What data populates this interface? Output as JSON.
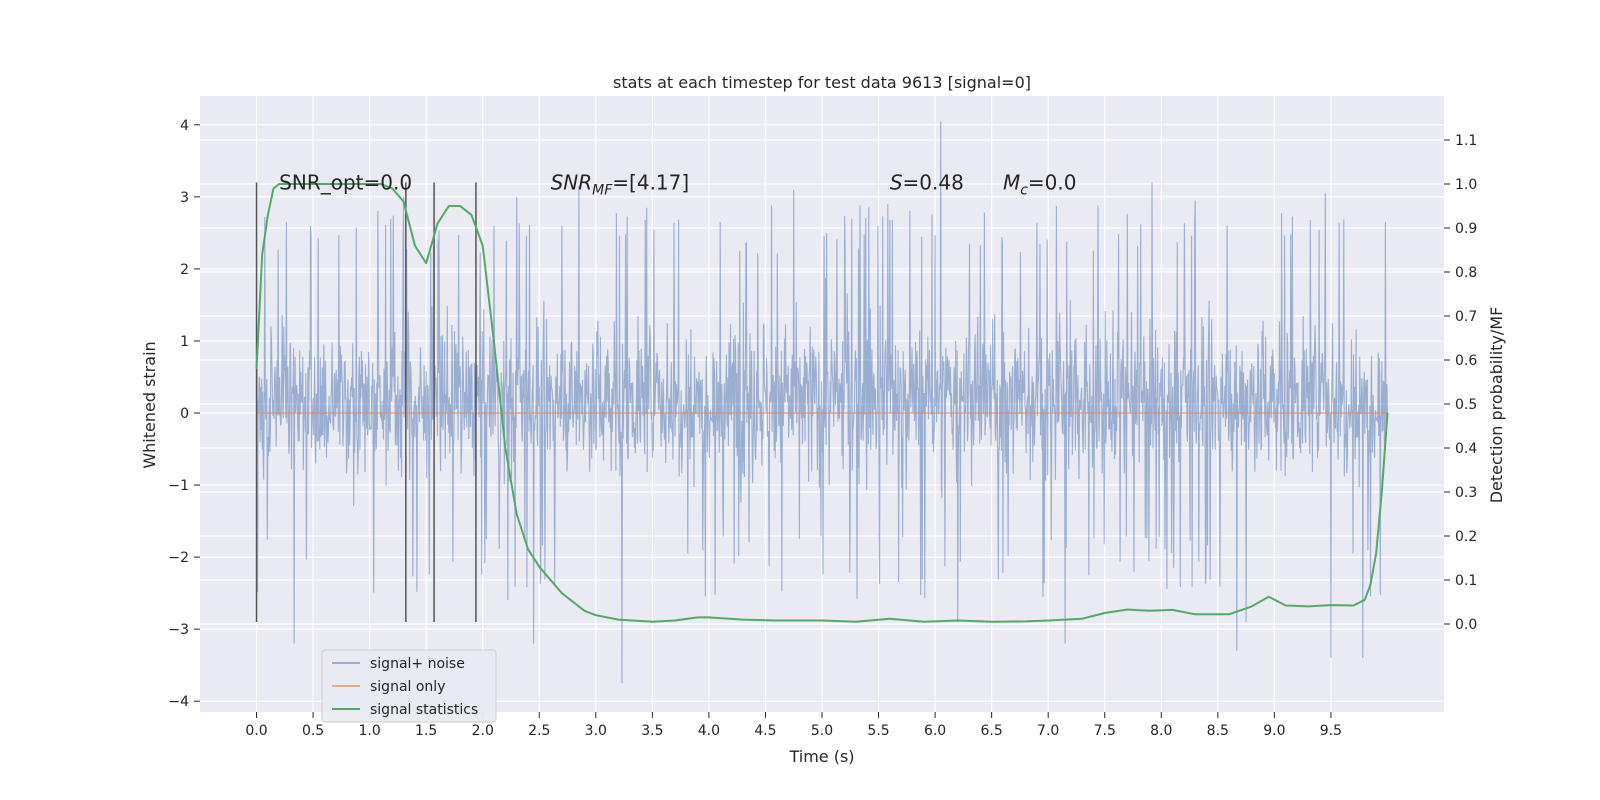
{
  "chart_data": {
    "type": "line",
    "title": "stats at each timestep for test data 9613 [signal=0]",
    "xlabel": "Time (s)",
    "ylabel_left": "Whitened strain",
    "ylabel_right": "Detection probability/MF",
    "xlim": [
      -0.5,
      10.5
    ],
    "ylim_left": [
      -4.15,
      4.4
    ],
    "ylim_right": [
      -0.2,
      1.2
    ],
    "x_ticks": [
      0.0,
      0.5,
      1.0,
      1.5,
      2.0,
      2.5,
      3.0,
      3.5,
      4.0,
      4.5,
      5.0,
      5.5,
      6.0,
      6.5,
      7.0,
      7.5,
      8.0,
      8.5,
      9.0,
      9.5
    ],
    "x_tick_labels": [
      "0.0",
      "0.5",
      "1.0",
      "1.5",
      "2.0",
      "2.5",
      "3.0",
      "3.5",
      "4.0",
      "4.5",
      "5.0",
      "5.5",
      "6.0",
      "6.5",
      "7.0",
      "7.5",
      "8.0",
      "8.5",
      "9.0",
      "9.5"
    ],
    "y_left_ticks": [
      -4,
      -3,
      -2,
      -1,
      0,
      1,
      2,
      3,
      4
    ],
    "y_left_tick_labels": [
      "−4",
      "−3",
      "−2",
      "−1",
      "0",
      "1",
      "2",
      "3",
      "4"
    ],
    "y_right_ticks": [
      0.0,
      0.1,
      0.2,
      0.3,
      0.4,
      0.5,
      0.6,
      0.7,
      0.8,
      0.9,
      1.0,
      1.1
    ],
    "y_right_tick_labels": [
      "0.0",
      "0.1",
      "0.2",
      "0.3",
      "0.4",
      "0.5",
      "0.6",
      "0.7",
      "0.8",
      "0.9",
      "1.0",
      "1.1"
    ],
    "grid": true,
    "legend_position": "lower-left",
    "series": [
      {
        "name": "signal+ noise",
        "axis": "left",
        "color": "#4c72b0",
        "opacity": 0.5,
        "x_range": [
          0.0,
          10.0
        ],
        "envelope": {
          "typical_min": -1.7,
          "typical_max": 2.2,
          "min": -3.75,
          "max": 4.05
        },
        "peaks": [
          [
            6.05,
            4.05
          ],
          [
            2.85,
            3.15
          ],
          [
            5.58,
            2.9
          ],
          [
            9.45,
            3.05
          ],
          [
            4.75,
            3.1
          ],
          [
            7.92,
            3.2
          ],
          [
            1.3,
            3.0
          ],
          [
            9.5,
            3.1
          ],
          [
            2.3,
            3.0
          ],
          [
            3.45,
            2.85
          ],
          [
            8.3,
            2.95
          ]
        ],
        "troughs": [
          [
            3.23,
            -3.75
          ],
          [
            0.33,
            -3.2
          ],
          [
            2.45,
            -3.2
          ],
          [
            7.15,
            -3.2
          ],
          [
            9.5,
            -3.4
          ],
          [
            9.78,
            -3.4
          ],
          [
            8.67,
            -3.3
          ],
          [
            6.2,
            -2.9
          ],
          [
            8.75,
            -2.9
          ]
        ]
      },
      {
        "name": "signal only",
        "axis": "left",
        "color": "#dd8452",
        "x": [
          0.0,
          10.0
        ],
        "y": [
          0.0,
          0.0
        ]
      },
      {
        "name": "signal statistics",
        "axis": "right",
        "color": "#55a868",
        "x": [
          0.0,
          0.05,
          0.1,
          0.15,
          0.2,
          0.3,
          0.5,
          0.7,
          0.9,
          1.0,
          1.1,
          1.2,
          1.3,
          1.4,
          1.5,
          1.6,
          1.7,
          1.8,
          1.85,
          1.9,
          2.0,
          2.1,
          2.2,
          2.3,
          2.4,
          2.5,
          2.7,
          2.9,
          3.0,
          3.2,
          3.5,
          3.7,
          3.9,
          4.0,
          4.3,
          4.6,
          5.0,
          5.3,
          5.6,
          5.9,
          6.2,
          6.5,
          6.8,
          7.0,
          7.3,
          7.5,
          7.7,
          7.9,
          8.1,
          8.3,
          8.6,
          8.8,
          8.95,
          9.1,
          9.3,
          9.5,
          9.7,
          9.8,
          9.85,
          9.9,
          9.95,
          10.0
        ],
        "y": [
          0.58,
          0.84,
          0.93,
          0.99,
          1.0,
          1.0,
          1.0,
          1.0,
          1.0,
          1.0,
          1.0,
          0.99,
          0.96,
          0.86,
          0.82,
          0.91,
          0.95,
          0.95,
          0.94,
          0.93,
          0.86,
          0.64,
          0.4,
          0.25,
          0.17,
          0.13,
          0.07,
          0.03,
          0.02,
          0.01,
          0.005,
          0.008,
          0.015,
          0.015,
          0.01,
          0.008,
          0.008,
          0.005,
          0.012,
          0.005,
          0.008,
          0.005,
          0.006,
          0.008,
          0.012,
          0.025,
          0.033,
          0.03,
          0.032,
          0.022,
          0.022,
          0.04,
          0.062,
          0.042,
          0.04,
          0.043,
          0.042,
          0.055,
          0.09,
          0.16,
          0.3,
          0.48
        ]
      }
    ],
    "vertical_lines": {
      "color": "#555555",
      "x": [
        0.0,
        1.32,
        1.57,
        1.94
      ],
      "y_top": 3.2,
      "y_bottom": -2.9
    },
    "annotations": [
      {
        "text": "SNR_opt=0.0",
        "x": 0.2,
        "y": 3.2
      },
      {
        "text": "SNR_MF=[4.17]",
        "prefix": "SNR",
        "sub": "MF",
        "suffix": "=[4.17]",
        "x": 2.6,
        "y": 3.2
      },
      {
        "text": "S=0.48",
        "prefix": "S",
        "suffix": "=0.48",
        "x": 5.6,
        "y": 3.2
      },
      {
        "text": "M_c=0.0",
        "prefix": "M",
        "sub": "c",
        "suffix": "=0.0",
        "x": 6.6,
        "y": 3.2
      }
    ]
  }
}
